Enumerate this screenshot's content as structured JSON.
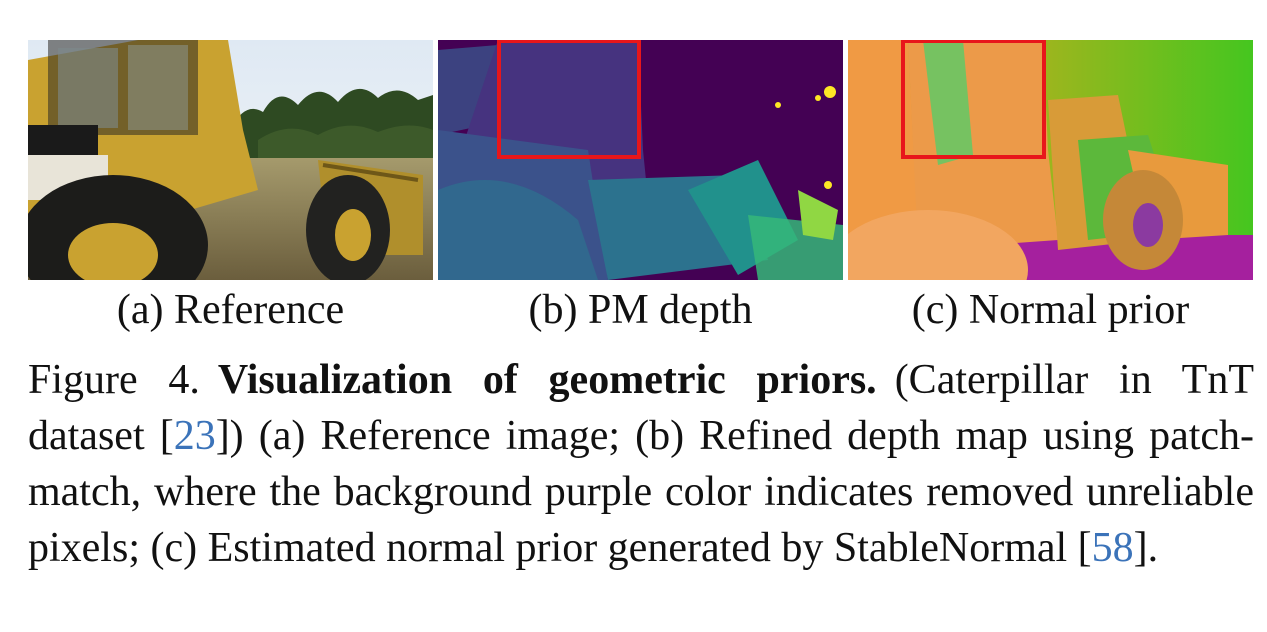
{
  "figure": {
    "panels": [
      {
        "id": "a",
        "label": "(a) Reference",
        "image": "reference-photo"
      },
      {
        "id": "b",
        "label": "(b) PM depth",
        "image": "depth-map",
        "highlight_color": "#e8161b"
      },
      {
        "id": "c",
        "label": "(c) Normal prior",
        "image": "normal-map",
        "highlight_color": "#e8161b"
      }
    ],
    "caption": {
      "number": "Figure 4.",
      "title": "Visualization of geometric priors.",
      "part1": "(Caterpillar in TnT dataset [",
      "cite1": "23",
      "part2": "]) (a) Reference image; (b) Refined depth map using patch-match, where the background purple color indicates removed unreliable pixels; (c) Estimated normal prior generated by StableNormal [",
      "cite2": "58",
      "part3": "]."
    },
    "colors": {
      "citation": "#3b73b9",
      "depth_background": "#440154",
      "highlight_box": "#e8161b"
    }
  }
}
